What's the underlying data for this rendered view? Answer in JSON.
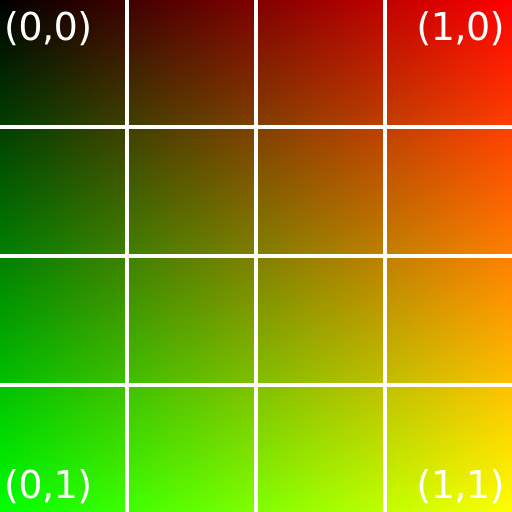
{
  "labels": {
    "top_left": "(0,0)",
    "top_right": "(1,0)",
    "bottom_left": "(0,1)",
    "bottom_right": "(1,1)"
  },
  "grid": {
    "rows": 4,
    "columns": 4,
    "line_color": "#ffffff",
    "label_color": "#ffffff"
  },
  "corner_colors": {
    "top_left": "#000000",
    "top_right": "#ff0000",
    "bottom_left": "#00ff00",
    "bottom_right": "#ffff00"
  }
}
